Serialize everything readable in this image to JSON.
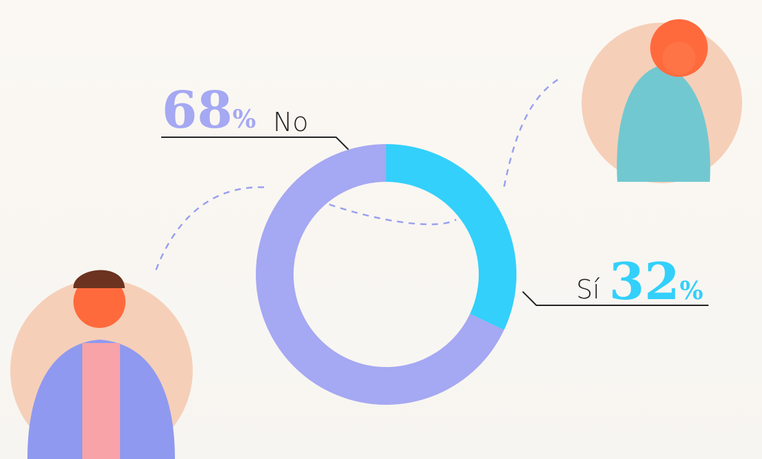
{
  "chart_data": {
    "type": "donut",
    "categories": [
      "No",
      "Sí"
    ],
    "values": [
      68,
      32
    ],
    "value_labels": [
      "68%",
      "32%"
    ],
    "colors": [
      "#a5a8f2",
      "#33d0fb"
    ]
  }
}
